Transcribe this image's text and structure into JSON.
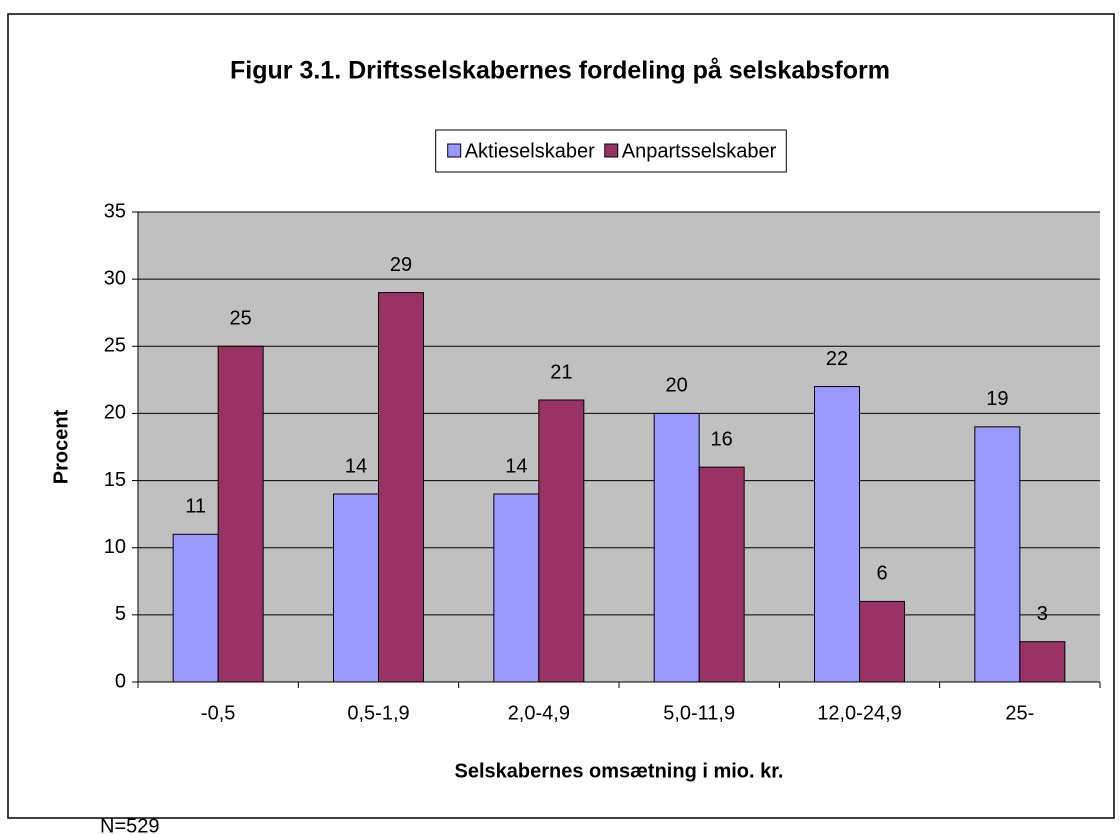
{
  "chart_data": {
    "type": "bar",
    "title": "Figur 3.1. Driftsselskabernes fordeling på selskabsform",
    "x_label": "Selskabernes omsætning i mio. kr.",
    "y_label": "Procent",
    "note": "N=529",
    "categories": [
      "-0,5",
      "0,5-1,9",
      "2,0-4,9",
      "5,0-11,9",
      "12,0-24,9",
      "25-"
    ],
    "series": [
      {
        "name": "Aktieselskaber",
        "color": "#9999ff",
        "values": [
          11,
          14,
          14,
          20,
          22,
          19
        ]
      },
      {
        "name": "Anpartsselskaber",
        "color": "#993366",
        "values": [
          25,
          29,
          21,
          16,
          6,
          3
        ]
      }
    ],
    "ylim": [
      0,
      35
    ],
    "yticks": [
      0,
      5,
      10,
      15,
      20,
      25,
      30,
      35
    ],
    "grid": true,
    "legend": "top"
  }
}
